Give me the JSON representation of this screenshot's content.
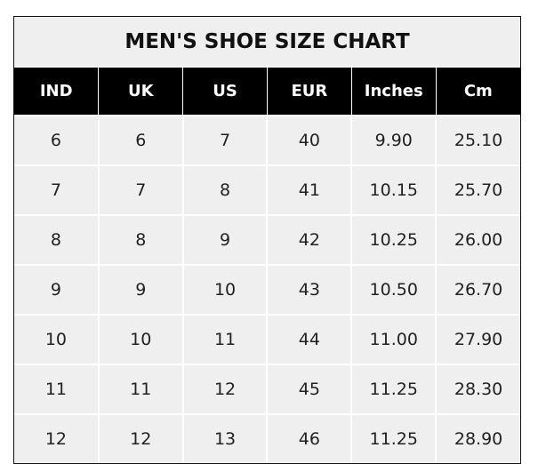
{
  "title": "MEN'S SHOE SIZE CHART",
  "columns": [
    "IND",
    "UK",
    "US",
    "EUR",
    "Inches",
    "Cm"
  ],
  "rows": [
    [
      "6",
      "6",
      "7",
      "40",
      "9.90",
      "25.10"
    ],
    [
      "7",
      "7",
      "8",
      "41",
      "10.15",
      "25.70"
    ],
    [
      "8",
      "8",
      "9",
      "42",
      "10.25",
      "26.00"
    ],
    [
      "9",
      "9",
      "10",
      "43",
      "10.50",
      "26.70"
    ],
    [
      "10",
      "10",
      "11",
      "44",
      "11.00",
      "27.90"
    ],
    [
      "11",
      "11",
      "12",
      "45",
      "11.25",
      "28.30"
    ],
    [
      "12",
      "12",
      "13",
      "46",
      "11.25",
      "28.90"
    ]
  ],
  "colors": {
    "header_bg": "#000000",
    "cell_bg": "#efefef",
    "grid": "#ffffff"
  }
}
